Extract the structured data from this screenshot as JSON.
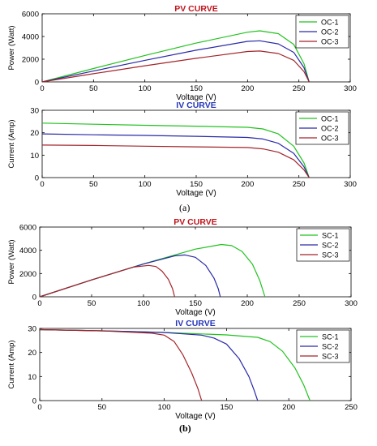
{
  "figure": {
    "caption_a": "(a)",
    "caption_b": "(b)"
  },
  "chart_data": [
    {
      "type": "line",
      "title": "PV CURVE",
      "title_color": "#c0141c",
      "xlabel": "Voltage (V)",
      "ylabel": "Power (Watt)",
      "xlim": [
        0,
        300
      ],
      "ylim": [
        0,
        6000
      ],
      "xticks": [
        0,
        50,
        100,
        150,
        200,
        250,
        300
      ],
      "yticks": [
        0,
        2000,
        4000,
        6000
      ],
      "legend_position": "top-right",
      "series": [
        {
          "name": "OC-1",
          "color": "#22c21f",
          "x": [
            0,
            50,
            100,
            150,
            200,
            212,
            230,
            245,
            255,
            260
          ],
          "y": [
            0,
            1180,
            2330,
            3420,
            4380,
            4500,
            4250,
            3300,
            1600,
            0
          ]
        },
        {
          "name": "OC-2",
          "color": "#2a2aa8",
          "x": [
            0,
            50,
            100,
            150,
            200,
            212,
            230,
            245,
            255,
            260
          ],
          "y": [
            0,
            960,
            1900,
            2790,
            3570,
            3620,
            3350,
            2600,
            1250,
            0
          ]
        },
        {
          "name": "OC-3",
          "color": "#a3252a",
          "x": [
            0,
            50,
            100,
            150,
            200,
            212,
            230,
            245,
            255,
            260
          ],
          "y": [
            0,
            720,
            1420,
            2080,
            2680,
            2720,
            2500,
            1900,
            900,
            0
          ]
        }
      ]
    },
    {
      "type": "line",
      "title": "IV CURVE",
      "title_color": "#2636b8",
      "xlabel": "Voltage (V)",
      "ylabel": "Current (Amp)",
      "xlim": [
        0,
        300
      ],
      "ylim": [
        0,
        30
      ],
      "xticks": [
        0,
        50,
        100,
        150,
        200,
        250,
        300
      ],
      "yticks": [
        0,
        10,
        20,
        30
      ],
      "legend_position": "top-right",
      "series": [
        {
          "name": "OC-1",
          "color": "#22c21f",
          "x": [
            0,
            50,
            100,
            150,
            200,
            215,
            230,
            245,
            255,
            260
          ],
          "y": [
            24.3,
            23.8,
            23.3,
            22.9,
            22.4,
            21.7,
            19.5,
            14.0,
            6.5,
            0
          ]
        },
        {
          "name": "OC-2",
          "color": "#2a2aa8",
          "x": [
            0,
            50,
            100,
            150,
            200,
            215,
            230,
            245,
            255,
            260
          ],
          "y": [
            19.5,
            19.1,
            18.8,
            18.4,
            17.9,
            17.2,
            15.3,
            10.8,
            4.8,
            0
          ]
        },
        {
          "name": "OC-3",
          "color": "#a3252a",
          "x": [
            0,
            50,
            100,
            150,
            200,
            215,
            230,
            245,
            255,
            260
          ],
          "y": [
            14.5,
            14.3,
            14.0,
            13.7,
            13.4,
            12.8,
            11.3,
            7.9,
            3.4,
            0
          ]
        }
      ]
    },
    {
      "type": "line",
      "title": "PV CURVE",
      "title_color": "#c0141c",
      "xlabel": "Voltage (V)",
      "ylabel": "Power (Watt)",
      "xlim": [
        0,
        300
      ],
      "ylim": [
        0,
        6000
      ],
      "xticks": [
        0,
        50,
        100,
        150,
        200,
        250,
        300
      ],
      "yticks": [
        0,
        2000,
        4000,
        6000
      ],
      "legend_position": "top-right",
      "series": [
        {
          "name": "SC-1",
          "color": "#22c21f",
          "x": [
            0,
            50,
            100,
            150,
            175,
            185,
            195,
            205,
            212,
            217
          ],
          "y": [
            0,
            1450,
            2830,
            4100,
            4500,
            4400,
            3900,
            2800,
            1400,
            0
          ]
        },
        {
          "name": "SC-2",
          "color": "#2a2aa8",
          "x": [
            0,
            50,
            100,
            130,
            140,
            150,
            160,
            168,
            172,
            174
          ],
          "y": [
            0,
            1450,
            2820,
            3520,
            3600,
            3400,
            2700,
            1600,
            700,
            0
          ]
        },
        {
          "name": "SC-3",
          "color": "#a3252a",
          "x": [
            0,
            50,
            90,
            105,
            112,
            118,
            124,
            128,
            130
          ],
          "y": [
            0,
            1450,
            2550,
            2700,
            2600,
            2200,
            1500,
            700,
            0
          ]
        }
      ]
    },
    {
      "type": "line",
      "title": "IV CURVE",
      "title_color": "#2636b8",
      "xlabel": "Voltage (V)",
      "ylabel": "Current (Amp)",
      "xlim": [
        0,
        250
      ],
      "ylim": [
        0,
        30
      ],
      "xticks": [
        0,
        50,
        100,
        150,
        200,
        250
      ],
      "yticks": [
        0,
        10,
        20,
        30
      ],
      "legend_position": "top-right",
      "series": [
        {
          "name": "SC-1",
          "color": "#22c21f",
          "x": [
            0,
            50,
            100,
            150,
            175,
            185,
            195,
            205,
            212,
            217
          ],
          "y": [
            29.5,
            29.0,
            28.3,
            27.3,
            26.3,
            24.5,
            20.5,
            13.5,
            6.5,
            0
          ]
        },
        {
          "name": "SC-2",
          "color": "#2a2aa8",
          "x": [
            0,
            50,
            100,
            130,
            140,
            150,
            160,
            168,
            172,
            175
          ],
          "y": [
            29.5,
            29.0,
            28.3,
            27.2,
            26.0,
            23.5,
            17.5,
            10.0,
            4.5,
            0
          ]
        },
        {
          "name": "SC-3",
          "color": "#a3252a",
          "x": [
            0,
            50,
            90,
            100,
            108,
            115,
            122,
            127,
            130
          ],
          "y": [
            29.5,
            29.0,
            28.0,
            27.2,
            24.5,
            19.0,
            11.5,
            5.0,
            0
          ]
        }
      ]
    }
  ]
}
